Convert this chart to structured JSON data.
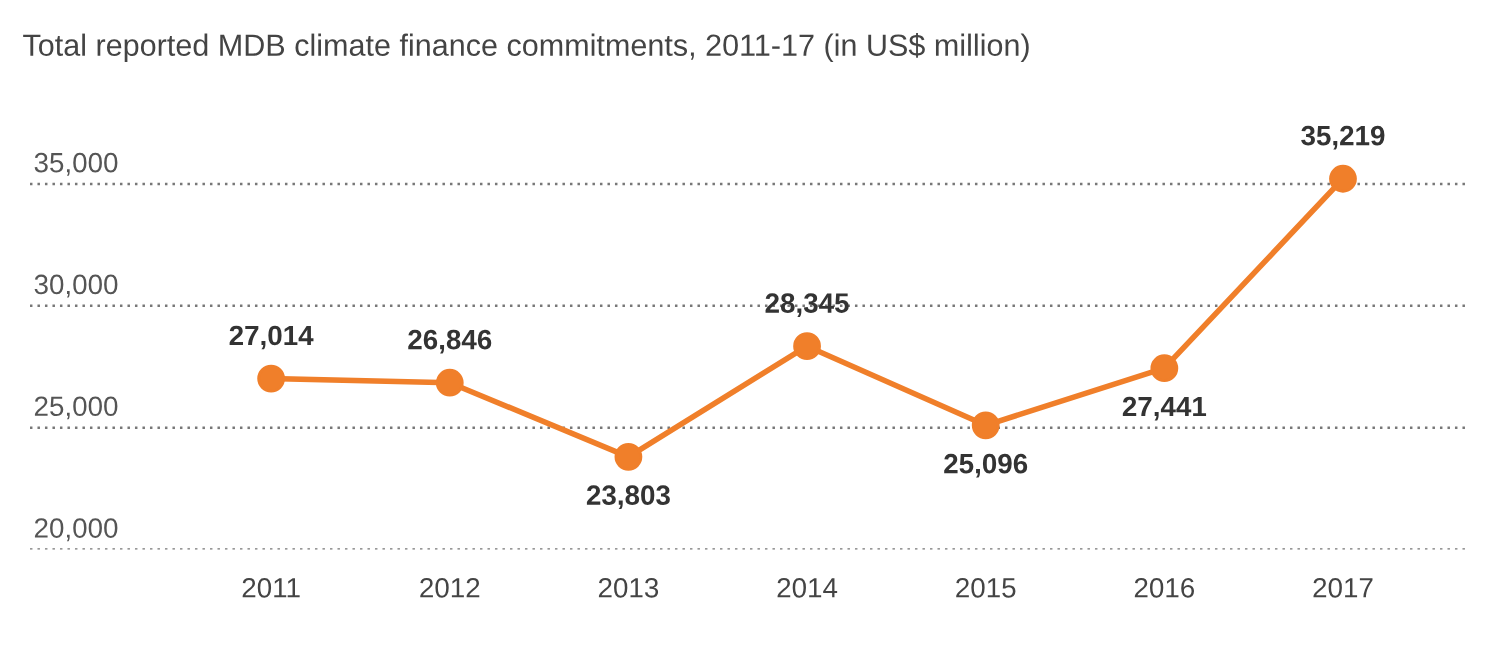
{
  "chart_data": {
    "type": "line",
    "title": "Total reported MDB climate finance commitments, 2011-17 (in US$ million)",
    "categories": [
      "2011",
      "2012",
      "2013",
      "2014",
      "2015",
      "2016",
      "2017"
    ],
    "values": [
      27014,
      26846,
      23803,
      28345,
      25096,
      27441,
      35219
    ],
    "value_labels": [
      "27,014",
      "26,846",
      "23,803",
      "28,345",
      "25,096",
      "27,441",
      "35,219"
    ],
    "color": "#f07f2a",
    "marker": "circle",
    "line_style": "solid",
    "ylim": [
      20000,
      35219
    ],
    "yticks": [
      {
        "value": 20000,
        "label": "20,000"
      },
      {
        "value": 25000,
        "label": "25,000"
      },
      {
        "value": 30000,
        "label": "30,000"
      },
      {
        "value": 35000,
        "label": "35,000"
      }
    ],
    "grid": "y"
  }
}
